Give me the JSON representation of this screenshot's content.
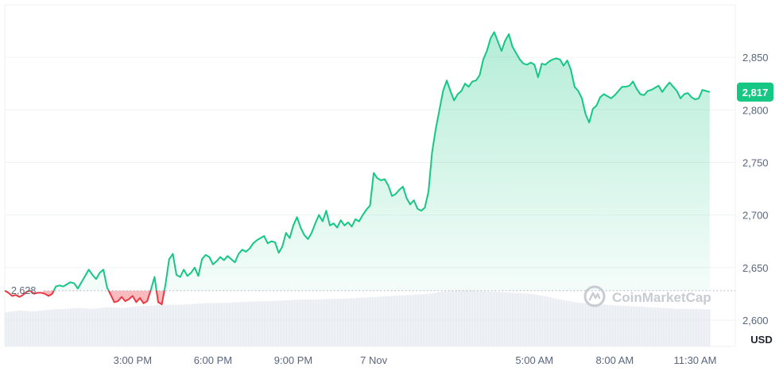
{
  "chart_data": {
    "type": "area",
    "title": "",
    "xlabel": "",
    "ylabel": "",
    "unit": "USD",
    "reference_price": 2628,
    "reference_label": "2,628",
    "current_price": 2817,
    "current_label": "2,817",
    "ylim": [
      2575,
      2900
    ],
    "yticks": [
      {
        "value": 2850,
        "label": "2,850"
      },
      {
        "value": 2800,
        "label": "2,800"
      },
      {
        "value": 2750,
        "label": "2,750"
      },
      {
        "value": 2700,
        "label": "2,700"
      },
      {
        "value": 2650,
        "label": "2,650"
      },
      {
        "value": 2600,
        "label": "2,600"
      }
    ],
    "xticks": [
      {
        "t": 0.175,
        "label": "3:00 PM"
      },
      {
        "t": 0.285,
        "label": "6:00 PM"
      },
      {
        "t": 0.395,
        "label": "9:00 PM"
      },
      {
        "t": 0.505,
        "label": "7 Nov"
      },
      {
        "t": 0.725,
        "label": "5:00 AM"
      },
      {
        "t": 0.835,
        "label": "8:00 AM"
      },
      {
        "t": 0.945,
        "label": "11:30 AM"
      }
    ],
    "grid": true,
    "colors": {
      "up": "#16c784",
      "down": "#ea3943",
      "grid": "#eff2f5",
      "volume": "#e5e8ec",
      "axis_text": "#58667e"
    },
    "watermark": "CoinMarketCap",
    "series": [
      {
        "values": [
          [
            0.0,
            2628
          ],
          [
            0.005,
            2626
          ],
          [
            0.01,
            2623
          ],
          [
            0.015,
            2624
          ],
          [
            0.02,
            2622
          ],
          [
            0.025,
            2624
          ],
          [
            0.03,
            2627
          ],
          [
            0.035,
            2628
          ],
          [
            0.04,
            2625
          ],
          [
            0.045,
            2626
          ],
          [
            0.05,
            2626
          ],
          [
            0.055,
            2625
          ],
          [
            0.06,
            2623
          ],
          [
            0.065,
            2625
          ],
          [
            0.07,
            2632
          ],
          [
            0.075,
            2633
          ],
          [
            0.08,
            2632
          ],
          [
            0.085,
            2634
          ],
          [
            0.09,
            2636
          ],
          [
            0.095,
            2635
          ],
          [
            0.1,
            2630
          ],
          [
            0.105,
            2636
          ],
          [
            0.11,
            2642
          ],
          [
            0.115,
            2648
          ],
          [
            0.12,
            2643
          ],
          [
            0.125,
            2639
          ],
          [
            0.13,
            2645
          ],
          [
            0.135,
            2648
          ],
          [
            0.14,
            2631
          ],
          [
            0.145,
            2624
          ],
          [
            0.15,
            2617
          ],
          [
            0.155,
            2618
          ],
          [
            0.16,
            2622
          ],
          [
            0.165,
            2618
          ],
          [
            0.17,
            2620
          ],
          [
            0.175,
            2623
          ],
          [
            0.18,
            2617
          ],
          [
            0.185,
            2621
          ],
          [
            0.19,
            2616
          ],
          [
            0.195,
            2618
          ],
          [
            0.2,
            2629
          ],
          [
            0.205,
            2641
          ],
          [
            0.21,
            2617
          ],
          [
            0.215,
            2615
          ],
          [
            0.22,
            2634
          ],
          [
            0.225,
            2658
          ],
          [
            0.23,
            2663
          ],
          [
            0.235,
            2643
          ],
          [
            0.24,
            2641
          ],
          [
            0.245,
            2648
          ],
          [
            0.25,
            2642
          ],
          [
            0.255,
            2645
          ],
          [
            0.26,
            2650
          ],
          [
            0.265,
            2642
          ],
          [
            0.27,
            2658
          ],
          [
            0.275,
            2662
          ],
          [
            0.28,
            2660
          ],
          [
            0.285,
            2653
          ],
          [
            0.29,
            2656
          ],
          [
            0.295,
            2660
          ],
          [
            0.3,
            2657
          ],
          [
            0.305,
            2661
          ],
          [
            0.31,
            2658
          ],
          [
            0.315,
            2655
          ],
          [
            0.32,
            2663
          ],
          [
            0.325,
            2667
          ],
          [
            0.33,
            2665
          ],
          [
            0.335,
            2668
          ],
          [
            0.34,
            2673
          ],
          [
            0.345,
            2676
          ],
          [
            0.35,
            2678
          ],
          [
            0.355,
            2680
          ],
          [
            0.36,
            2673
          ],
          [
            0.365,
            2675
          ],
          [
            0.37,
            2674
          ],
          [
            0.375,
            2664
          ],
          [
            0.38,
            2670
          ],
          [
            0.385,
            2683
          ],
          [
            0.39,
            2678
          ],
          [
            0.395,
            2690
          ],
          [
            0.4,
            2698
          ],
          [
            0.405,
            2688
          ],
          [
            0.41,
            2681
          ],
          [
            0.415,
            2677
          ],
          [
            0.42,
            2683
          ],
          [
            0.425,
            2692
          ],
          [
            0.43,
            2700
          ],
          [
            0.435,
            2694
          ],
          [
            0.44,
            2704
          ],
          [
            0.445,
            2690
          ],
          [
            0.45,
            2692
          ],
          [
            0.455,
            2688
          ],
          [
            0.46,
            2695
          ],
          [
            0.465,
            2690
          ],
          [
            0.47,
            2693
          ],
          [
            0.475,
            2689
          ],
          [
            0.48,
            2696
          ],
          [
            0.485,
            2694
          ],
          [
            0.49,
            2700
          ],
          [
            0.495,
            2705
          ],
          [
            0.5,
            2709
          ],
          [
            0.505,
            2740
          ],
          [
            0.51,
            2735
          ],
          [
            0.515,
            2733
          ],
          [
            0.52,
            2734
          ],
          [
            0.525,
            2728
          ],
          [
            0.53,
            2718
          ],
          [
            0.535,
            2720
          ],
          [
            0.54,
            2724
          ],
          [
            0.545,
            2727
          ],
          [
            0.55,
            2716
          ],
          [
            0.555,
            2710
          ],
          [
            0.56,
            2714
          ],
          [
            0.565,
            2706
          ],
          [
            0.57,
            2704
          ],
          [
            0.575,
            2707
          ],
          [
            0.58,
            2722
          ],
          [
            0.585,
            2760
          ],
          [
            0.59,
            2782
          ],
          [
            0.595,
            2800
          ],
          [
            0.6,
            2818
          ],
          [
            0.605,
            2828
          ],
          [
            0.61,
            2818
          ],
          [
            0.615,
            2809
          ],
          [
            0.62,
            2815
          ],
          [
            0.625,
            2818
          ],
          [
            0.63,
            2825
          ],
          [
            0.635,
            2822
          ],
          [
            0.64,
            2827
          ],
          [
            0.645,
            2828
          ],
          [
            0.65,
            2833
          ],
          [
            0.655,
            2848
          ],
          [
            0.66,
            2856
          ],
          [
            0.665,
            2868
          ],
          [
            0.67,
            2874
          ],
          [
            0.675,
            2865
          ],
          [
            0.68,
            2856
          ],
          [
            0.685,
            2866
          ],
          [
            0.69,
            2872
          ],
          [
            0.695,
            2860
          ],
          [
            0.7,
            2854
          ],
          [
            0.705,
            2848
          ],
          [
            0.71,
            2844
          ],
          [
            0.715,
            2843
          ],
          [
            0.72,
            2845
          ],
          [
            0.725,
            2843
          ],
          [
            0.73,
            2831
          ],
          [
            0.735,
            2844
          ],
          [
            0.74,
            2843
          ],
          [
            0.745,
            2846
          ],
          [
            0.75,
            2848
          ],
          [
            0.755,
            2849
          ],
          [
            0.76,
            2848
          ],
          [
            0.765,
            2842
          ],
          [
            0.77,
            2847
          ],
          [
            0.775,
            2838
          ],
          [
            0.78,
            2822
          ],
          [
            0.785,
            2818
          ],
          [
            0.79,
            2811
          ],
          [
            0.795,
            2796
          ],
          [
            0.8,
            2788
          ],
          [
            0.805,
            2801
          ],
          [
            0.81,
            2804
          ],
          [
            0.815,
            2812
          ],
          [
            0.82,
            2815
          ],
          [
            0.825,
            2813
          ],
          [
            0.83,
            2811
          ],
          [
            0.835,
            2814
          ],
          [
            0.84,
            2818
          ],
          [
            0.845,
            2822
          ],
          [
            0.85,
            2822
          ],
          [
            0.855,
            2823
          ],
          [
            0.86,
            2827
          ],
          [
            0.865,
            2820
          ],
          [
            0.87,
            2815
          ],
          [
            0.875,
            2814
          ],
          [
            0.88,
            2818
          ],
          [
            0.885,
            2819
          ],
          [
            0.89,
            2821
          ],
          [
            0.895,
            2823
          ],
          [
            0.9,
            2817
          ],
          [
            0.905,
            2822
          ],
          [
            0.91,
            2826
          ],
          [
            0.915,
            2822
          ],
          [
            0.92,
            2818
          ],
          [
            0.925,
            2811
          ],
          [
            0.93,
            2815
          ],
          [
            0.935,
            2816
          ],
          [
            0.94,
            2812
          ],
          [
            0.945,
            2810
          ],
          [
            0.95,
            2811
          ],
          [
            0.955,
            2819
          ],
          [
            0.96,
            2818
          ],
          [
            0.965,
            2817
          ]
        ]
      }
    ],
    "volume": [
      [
        0.0,
        0.41
      ],
      [
        0.02,
        0.43
      ],
      [
        0.04,
        0.42
      ],
      [
        0.06,
        0.44
      ],
      [
        0.08,
        0.45
      ],
      [
        0.1,
        0.46
      ],
      [
        0.12,
        0.45
      ],
      [
        0.14,
        0.47
      ],
      [
        0.16,
        0.46
      ],
      [
        0.18,
        0.48
      ],
      [
        0.2,
        0.49
      ],
      [
        0.22,
        0.5
      ],
      [
        0.24,
        0.5
      ],
      [
        0.26,
        0.51
      ],
      [
        0.28,
        0.52
      ],
      [
        0.3,
        0.52
      ],
      [
        0.32,
        0.53
      ],
      [
        0.34,
        0.54
      ],
      [
        0.36,
        0.54
      ],
      [
        0.38,
        0.55
      ],
      [
        0.4,
        0.56
      ],
      [
        0.42,
        0.56
      ],
      [
        0.44,
        0.57
      ],
      [
        0.46,
        0.57
      ],
      [
        0.48,
        0.58
      ],
      [
        0.5,
        0.59
      ],
      [
        0.52,
        0.6
      ],
      [
        0.54,
        0.61
      ],
      [
        0.56,
        0.62
      ],
      [
        0.58,
        0.63
      ],
      [
        0.6,
        0.66
      ],
      [
        0.62,
        0.67
      ],
      [
        0.64,
        0.67
      ],
      [
        0.66,
        0.66
      ],
      [
        0.68,
        0.65
      ],
      [
        0.7,
        0.64
      ],
      [
        0.72,
        0.63
      ],
      [
        0.74,
        0.6
      ],
      [
        0.76,
        0.56
      ],
      [
        0.78,
        0.53
      ],
      [
        0.8,
        0.51
      ],
      [
        0.82,
        0.5
      ],
      [
        0.84,
        0.49
      ],
      [
        0.86,
        0.48
      ],
      [
        0.88,
        0.47
      ],
      [
        0.9,
        0.46
      ],
      [
        0.92,
        0.45
      ],
      [
        0.94,
        0.45
      ],
      [
        0.965,
        0.44
      ]
    ]
  }
}
